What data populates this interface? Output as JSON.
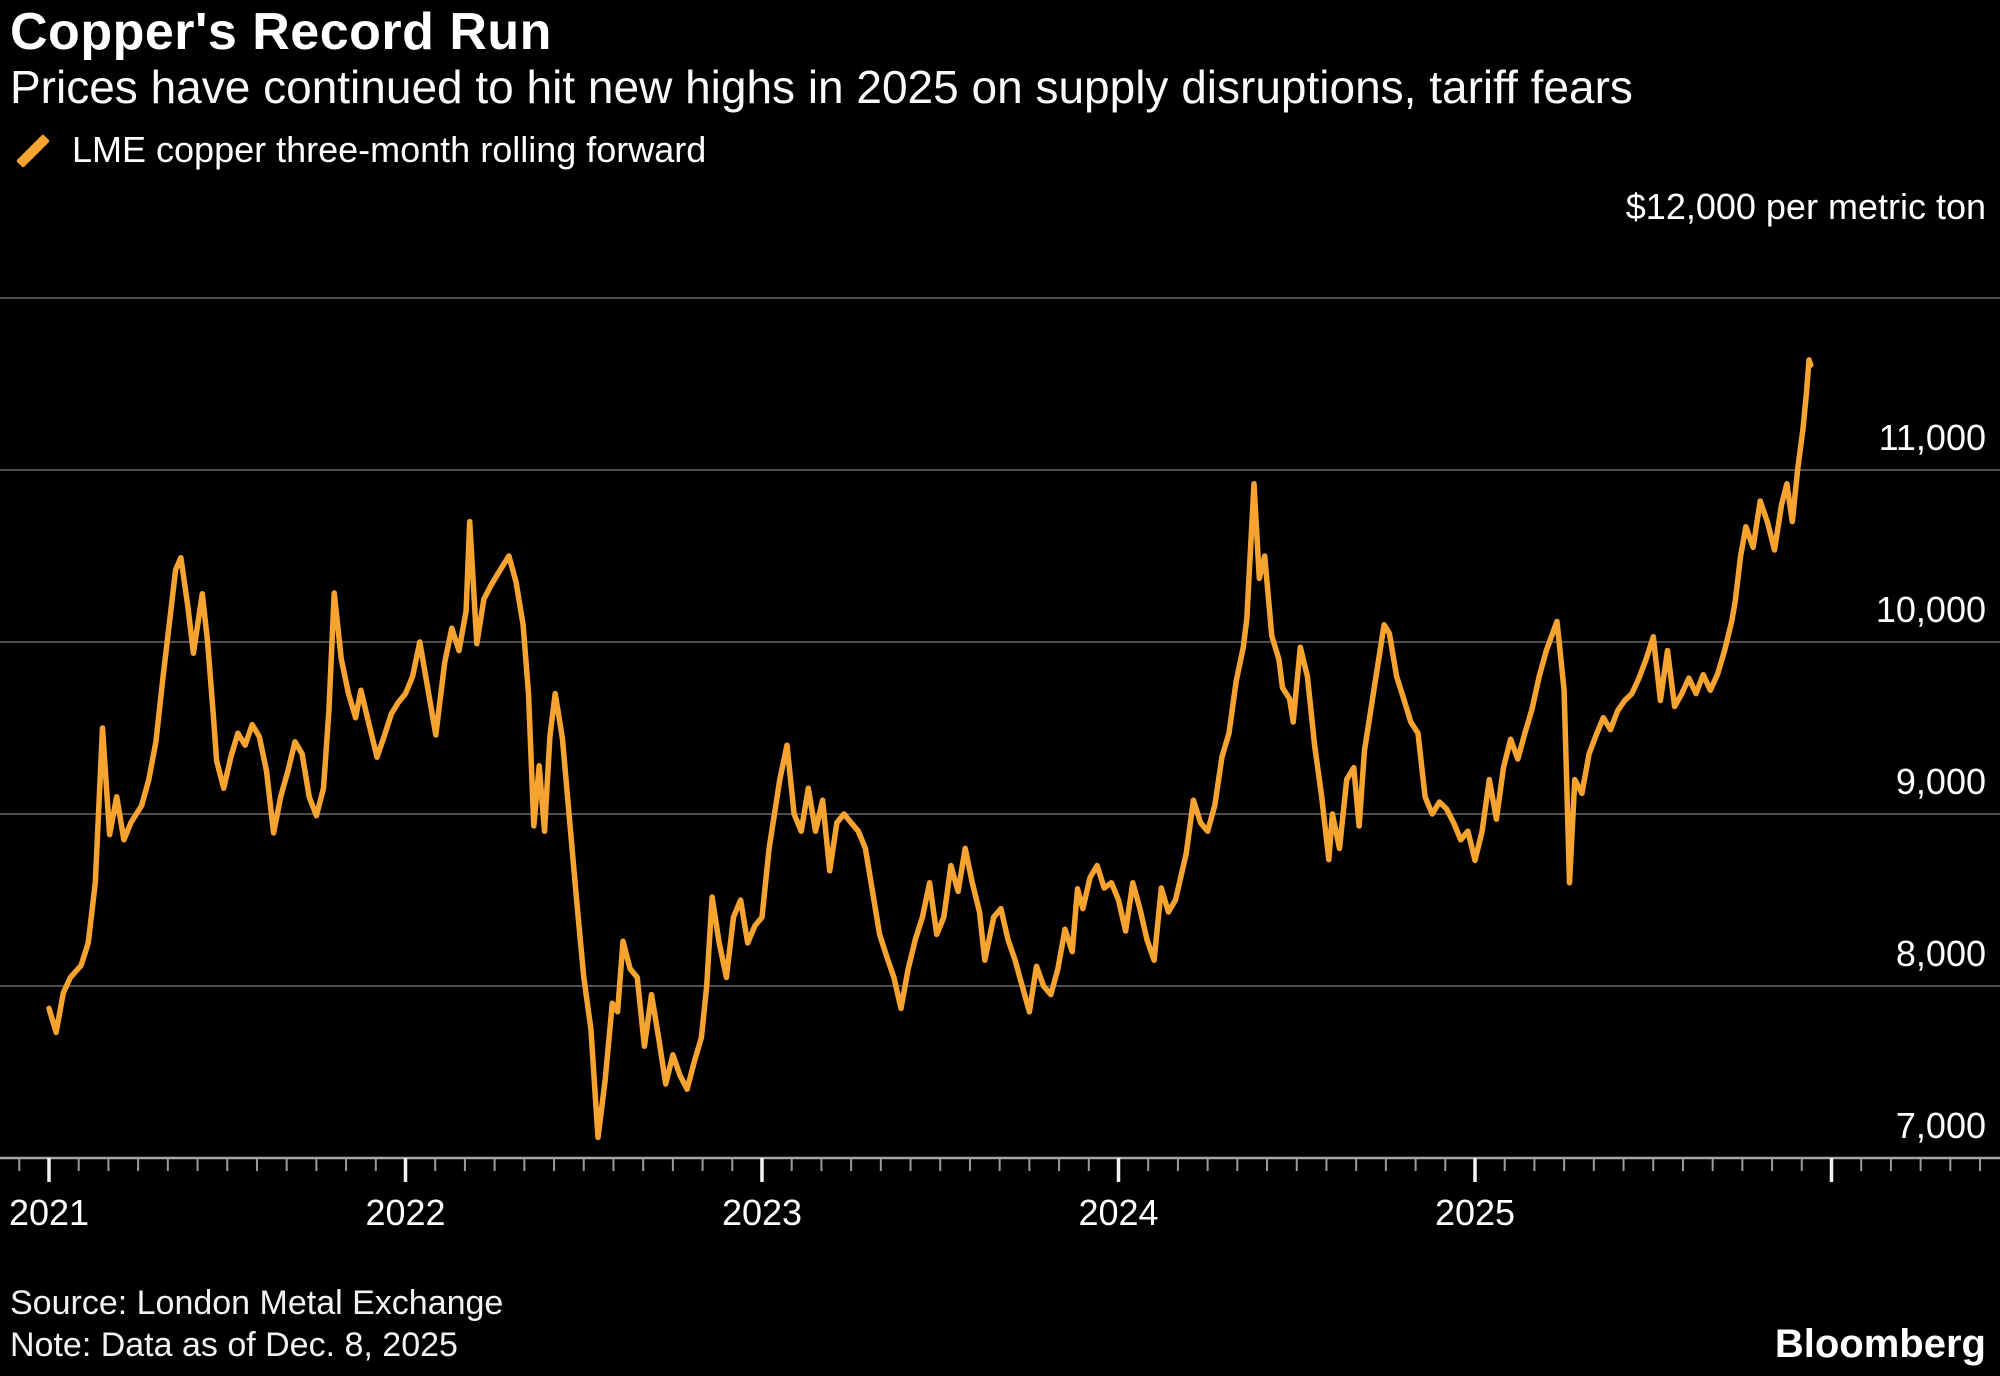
{
  "header": {
    "title": "Copper's Record Run",
    "subtitle": "Prices have continued to hit new highs in 2025 on supply disruptions, tariff fears"
  },
  "legend": {
    "label": "LME copper three-month rolling forward",
    "marker_color": "#F6A42F"
  },
  "footer": {
    "source": "Source: London Metal Exchange",
    "note": "Note: Data as of Dec. 8, 2025",
    "brand": "Bloomberg"
  },
  "chart_data": {
    "type": "line",
    "title": "Copper's Record Run",
    "series_name": "LME copper three-month rolling forward",
    "unit_note": "$12,000 per metric ton",
    "line_color": "#F6A42F",
    "background_color": "#000000",
    "gridline_color": "#4E4E4E",
    "axis_line_color": "#A8A8A8",
    "minor_tick_color": "#9B9B9B",
    "major_tick_color": "#F2F2F2",
    "grid": true,
    "legend_position": "top-left",
    "ylim": [
      7000,
      12200
    ],
    "ylabel": "$ per metric ton",
    "xlabel": "",
    "yticks": [
      {
        "value": 11000,
        "label": "11,000"
      },
      {
        "value": 10000,
        "label": "10,000"
      },
      {
        "value": 9000,
        "label": "9,000"
      },
      {
        "value": 8000,
        "label": "8,000"
      },
      {
        "value": 7000,
        "label": "7,000"
      }
    ],
    "grid_values": [
      12000,
      11000,
      10000,
      9000,
      8000
    ],
    "axis_value": 7000,
    "x_year_labels": [
      {
        "t": 2021,
        "label": "2021"
      },
      {
        "t": 2022,
        "label": "2022"
      },
      {
        "t": 2023,
        "label": "2023"
      },
      {
        "t": 2024,
        "label": "2024"
      },
      {
        "t": 2025,
        "label": "2025"
      }
    ],
    "x_minor_tick_months": true,
    "x_tick_start": 2020.917,
    "x_tick_end": 2026.45,
    "points": [
      [
        2021.0,
        7870
      ],
      [
        2021.02,
        7730
      ],
      [
        2021.04,
        7960
      ],
      [
        2021.06,
        8050
      ],
      [
        2021.09,
        8120
      ],
      [
        2021.11,
        8250
      ],
      [
        2021.13,
        8600
      ],
      [
        2021.15,
        9500
      ],
      [
        2021.17,
        8880
      ],
      [
        2021.19,
        9100
      ],
      [
        2021.21,
        8850
      ],
      [
        2021.23,
        8950
      ],
      [
        2021.26,
        9050
      ],
      [
        2021.28,
        9200
      ],
      [
        2021.3,
        9420
      ],
      [
        2021.32,
        9800
      ],
      [
        2021.34,
        10150
      ],
      [
        2021.355,
        10420
      ],
      [
        2021.37,
        10490
      ],
      [
        2021.39,
        10200
      ],
      [
        2021.405,
        9935
      ],
      [
        2021.43,
        10280
      ],
      [
        2021.445,
        10000
      ],
      [
        2021.46,
        9600
      ],
      [
        2021.47,
        9310
      ],
      [
        2021.49,
        9150
      ],
      [
        2021.51,
        9330
      ],
      [
        2021.53,
        9470
      ],
      [
        2021.55,
        9400
      ],
      [
        2021.57,
        9520
      ],
      [
        2021.59,
        9450
      ],
      [
        2021.61,
        9250
      ],
      [
        2021.63,
        8890
      ],
      [
        2021.65,
        9100
      ],
      [
        2021.67,
        9250
      ],
      [
        2021.69,
        9420
      ],
      [
        2021.71,
        9350
      ],
      [
        2021.73,
        9100
      ],
      [
        2021.75,
        8990
      ],
      [
        2021.77,
        9150
      ],
      [
        2021.785,
        9600
      ],
      [
        2021.8,
        10285
      ],
      [
        2021.82,
        9900
      ],
      [
        2021.84,
        9700
      ],
      [
        2021.86,
        9560
      ],
      [
        2021.875,
        9720
      ],
      [
        2021.9,
        9500
      ],
      [
        2021.92,
        9330
      ],
      [
        2021.94,
        9450
      ],
      [
        2021.96,
        9580
      ],
      [
        2021.98,
        9650
      ],
      [
        2022.0,
        9700
      ],
      [
        2022.02,
        9800
      ],
      [
        2022.04,
        10000
      ],
      [
        2022.06,
        9760
      ],
      [
        2022.085,
        9460
      ],
      [
        2022.11,
        9880
      ],
      [
        2022.13,
        10080
      ],
      [
        2022.15,
        9950
      ],
      [
        2022.17,
        10180
      ],
      [
        2022.18,
        10700
      ],
      [
        2022.2,
        9990
      ],
      [
        2022.22,
        10250
      ],
      [
        2022.24,
        10330
      ],
      [
        2022.26,
        10400
      ],
      [
        2022.29,
        10500
      ],
      [
        2022.31,
        10350
      ],
      [
        2022.33,
        10100
      ],
      [
        2022.345,
        9700
      ],
      [
        2022.36,
        8930
      ],
      [
        2022.375,
        9280
      ],
      [
        2022.39,
        8900
      ],
      [
        2022.405,
        9450
      ],
      [
        2022.42,
        9700
      ],
      [
        2022.44,
        9440
      ],
      [
        2022.46,
        8970
      ],
      [
        2022.48,
        8500
      ],
      [
        2022.5,
        8050
      ],
      [
        2022.52,
        7750
      ],
      [
        2022.54,
        7120
      ],
      [
        2022.56,
        7450
      ],
      [
        2022.58,
        7900
      ],
      [
        2022.595,
        7850
      ],
      [
        2022.61,
        8260
      ],
      [
        2022.63,
        8100
      ],
      [
        2022.65,
        8050
      ],
      [
        2022.67,
        7650
      ],
      [
        2022.69,
        7950
      ],
      [
        2022.71,
        7700
      ],
      [
        2022.73,
        7430
      ],
      [
        2022.75,
        7600
      ],
      [
        2022.77,
        7480
      ],
      [
        2022.79,
        7400
      ],
      [
        2022.81,
        7560
      ],
      [
        2022.83,
        7700
      ],
      [
        2022.845,
        8000
      ],
      [
        2022.86,
        8517
      ],
      [
        2022.88,
        8250
      ],
      [
        2022.9,
        8050
      ],
      [
        2022.92,
        8400
      ],
      [
        2022.94,
        8500
      ],
      [
        2022.96,
        8250
      ],
      [
        2022.98,
        8350
      ],
      [
        2023.0,
        8400
      ],
      [
        2023.02,
        8800
      ],
      [
        2023.05,
        9200
      ],
      [
        2023.07,
        9400
      ],
      [
        2023.09,
        9000
      ],
      [
        2023.11,
        8900
      ],
      [
        2023.13,
        9150
      ],
      [
        2023.15,
        8900
      ],
      [
        2023.17,
        9080
      ],
      [
        2023.19,
        8670
      ],
      [
        2023.21,
        8950
      ],
      [
        2023.23,
        9000
      ],
      [
        2023.25,
        8950
      ],
      [
        2023.27,
        8900
      ],
      [
        2023.29,
        8800
      ],
      [
        2023.31,
        8550
      ],
      [
        2023.33,
        8300
      ],
      [
        2023.35,
        8170
      ],
      [
        2023.37,
        8050
      ],
      [
        2023.39,
        7870
      ],
      [
        2023.41,
        8100
      ],
      [
        2023.43,
        8270
      ],
      [
        2023.45,
        8400
      ],
      [
        2023.47,
        8600
      ],
      [
        2023.49,
        8300
      ],
      [
        2023.51,
        8400
      ],
      [
        2023.53,
        8700
      ],
      [
        2023.55,
        8550
      ],
      [
        2023.57,
        8800
      ],
      [
        2023.59,
        8600
      ],
      [
        2023.61,
        8430
      ],
      [
        2023.625,
        8150
      ],
      [
        2023.65,
        8400
      ],
      [
        2023.67,
        8450
      ],
      [
        2023.69,
        8270
      ],
      [
        2023.71,
        8150
      ],
      [
        2023.73,
        8000
      ],
      [
        2023.75,
        7850
      ],
      [
        2023.77,
        8115
      ],
      [
        2023.79,
        8000
      ],
      [
        2023.81,
        7950
      ],
      [
        2023.83,
        8100
      ],
      [
        2023.85,
        8330
      ],
      [
        2023.87,
        8200
      ],
      [
        2023.885,
        8565
      ],
      [
        2023.9,
        8450
      ],
      [
        2023.92,
        8630
      ],
      [
        2023.94,
        8700
      ],
      [
        2023.96,
        8570
      ],
      [
        2023.98,
        8600
      ],
      [
        2024.0,
        8500
      ],
      [
        2024.02,
        8320
      ],
      [
        2024.04,
        8600
      ],
      [
        2024.06,
        8450
      ],
      [
        2024.08,
        8270
      ],
      [
        2024.1,
        8150
      ],
      [
        2024.12,
        8570
      ],
      [
        2024.14,
        8430
      ],
      [
        2024.16,
        8500
      ],
      [
        2024.19,
        8770
      ],
      [
        2024.21,
        9080
      ],
      [
        2024.23,
        8950
      ],
      [
        2024.25,
        8900
      ],
      [
        2024.27,
        9050
      ],
      [
        2024.29,
        9330
      ],
      [
        2024.31,
        9470
      ],
      [
        2024.33,
        9770
      ],
      [
        2024.35,
        9970
      ],
      [
        2024.36,
        10135
      ],
      [
        2024.38,
        10920
      ],
      [
        2024.395,
        10370
      ],
      [
        2024.41,
        10500
      ],
      [
        2024.43,
        10035
      ],
      [
        2024.45,
        9900
      ],
      [
        2024.46,
        9735
      ],
      [
        2024.48,
        9670
      ],
      [
        2024.49,
        9535
      ],
      [
        2024.51,
        9970
      ],
      [
        2024.53,
        9800
      ],
      [
        2024.55,
        9400
      ],
      [
        2024.57,
        9100
      ],
      [
        2024.59,
        8735
      ],
      [
        2024.6,
        9000
      ],
      [
        2024.62,
        8800
      ],
      [
        2024.64,
        9200
      ],
      [
        2024.66,
        9270
      ],
      [
        2024.675,
        8930
      ],
      [
        2024.69,
        9370
      ],
      [
        2024.72,
        9770
      ],
      [
        2024.745,
        10100
      ],
      [
        2024.76,
        10050
      ],
      [
        2024.78,
        9800
      ],
      [
        2024.8,
        9670
      ],
      [
        2024.82,
        9535
      ],
      [
        2024.84,
        9470
      ],
      [
        2024.86,
        9100
      ],
      [
        2024.88,
        9000
      ],
      [
        2024.9,
        9070
      ],
      [
        2024.92,
        9030
      ],
      [
        2024.94,
        8950
      ],
      [
        2024.96,
        8850
      ],
      [
        2024.98,
        8900
      ],
      [
        2025.0,
        8730
      ],
      [
        2025.02,
        8900
      ],
      [
        2025.04,
        9200
      ],
      [
        2025.06,
        8970
      ],
      [
        2025.08,
        9270
      ],
      [
        2025.1,
        9435
      ],
      [
        2025.12,
        9320
      ],
      [
        2025.14,
        9470
      ],
      [
        2025.16,
        9610
      ],
      [
        2025.18,
        9800
      ],
      [
        2025.2,
        9950
      ],
      [
        2025.23,
        10120
      ],
      [
        2025.25,
        9720
      ],
      [
        2025.265,
        8600
      ],
      [
        2025.28,
        9200
      ],
      [
        2025.3,
        9120
      ],
      [
        2025.32,
        9350
      ],
      [
        2025.34,
        9460
      ],
      [
        2025.36,
        9560
      ],
      [
        2025.38,
        9490
      ],
      [
        2025.4,
        9600
      ],
      [
        2025.42,
        9660
      ],
      [
        2025.44,
        9700
      ],
      [
        2025.46,
        9790
      ],
      [
        2025.48,
        9900
      ],
      [
        2025.5,
        10030
      ],
      [
        2025.52,
        9660
      ],
      [
        2025.54,
        9950
      ],
      [
        2025.56,
        9625
      ],
      [
        2025.58,
        9700
      ],
      [
        2025.6,
        9790
      ],
      [
        2025.62,
        9700
      ],
      [
        2025.64,
        9810
      ],
      [
        2025.66,
        9720
      ],
      [
        2025.68,
        9810
      ],
      [
        2025.7,
        9950
      ],
      [
        2025.72,
        10120
      ],
      [
        2025.73,
        10235
      ],
      [
        2025.745,
        10500
      ],
      [
        2025.76,
        10670
      ],
      [
        2025.78,
        10550
      ],
      [
        2025.8,
        10820
      ],
      [
        2025.82,
        10700
      ],
      [
        2025.84,
        10535
      ],
      [
        2025.86,
        10800
      ],
      [
        2025.875,
        10920
      ],
      [
        2025.89,
        10700
      ],
      [
        2025.905,
        11000
      ],
      [
        2025.92,
        11240
      ],
      [
        2025.93,
        11450
      ],
      [
        2025.937,
        11640
      ],
      [
        2025.942,
        11610
      ]
    ]
  }
}
